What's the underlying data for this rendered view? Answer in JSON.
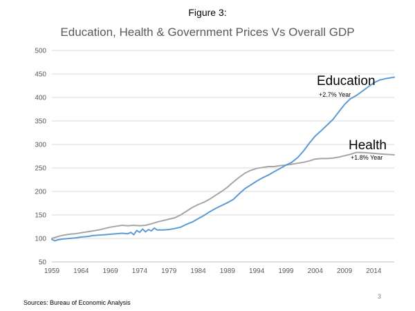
{
  "figure_label": "Figure 3:",
  "source": "Sources:  Bureau of Economic Analysis",
  "page_number": "3",
  "colors": {
    "education": "#5b9bd5",
    "health": "#a5a5a5",
    "grid": "#d9d9d9",
    "axis_text": "#595959"
  },
  "chart_data": {
    "type": "line",
    "title": "Education, Health & Government Prices Vs Overall GDP",
    "xlabel": "",
    "ylabel": "",
    "ylim": [
      50,
      500
    ],
    "xlim": [
      1959,
      2017.5
    ],
    "yticks": [
      50,
      100,
      150,
      200,
      250,
      300,
      350,
      400,
      450,
      500
    ],
    "xticks": [
      1959,
      1964,
      1969,
      1974,
      1979,
      1984,
      1989,
      1994,
      1999,
      2004,
      2009,
      2014
    ],
    "grid": true,
    "legend": "none",
    "series": [
      {
        "name": "Education",
        "label": "Education",
        "annotation": "+2.7% Year",
        "x": [
          1959,
          1959.5,
          1960,
          1961,
          1962,
          1963,
          1964,
          1965,
          1966,
          1967,
          1968,
          1969,
          1970,
          1971,
          1972,
          1972.5,
          1973,
          1973.5,
          1974,
          1974.5,
          1975,
          1975.5,
          1976,
          1976.5,
          1977,
          1978,
          1979,
          1980,
          1981,
          1982,
          1983,
          1984,
          1985,
          1986,
          1987,
          1988,
          1989,
          1990,
          1991,
          1992,
          1993,
          1994,
          1995,
          1996,
          1997,
          1998,
          1999,
          2000,
          2001,
          2002,
          2003,
          2004,
          2005,
          2006,
          2007,
          2008,
          2009,
          2010,
          2011,
          2012,
          2013,
          2014,
          2015,
          2016,
          2017.5
        ],
        "values": [
          98,
          95,
          97,
          99,
          100,
          101,
          103,
          104,
          106,
          107,
          108,
          109,
          110,
          111,
          110,
          113,
          108,
          117,
          113,
          120,
          114,
          119,
          116,
          122,
          118,
          118,
          119,
          121,
          124,
          130,
          135,
          142,
          149,
          157,
          164,
          170,
          176,
          183,
          195,
          206,
          214,
          222,
          229,
          235,
          242,
          249,
          256,
          262,
          272,
          286,
          303,
          318,
          329,
          341,
          353,
          369,
          385,
          397,
          404,
          413,
          422,
          431,
          437,
          440,
          443
        ]
      },
      {
        "name": "Health",
        "label": "Health",
        "annotation": "+1.8% Year",
        "x": [
          1959,
          1960,
          1961,
          1962,
          1963,
          1964,
          1965,
          1966,
          1967,
          1968,
          1969,
          1970,
          1971,
          1972,
          1973,
          1974,
          1975,
          1976,
          1977,
          1978,
          1979,
          1980,
          1981,
          1982,
          1983,
          1984,
          1985,
          1986,
          1987,
          1988,
          1989,
          1990,
          1991,
          1992,
          1993,
          1994,
          1995,
          1996,
          1997,
          1998,
          1999,
          2000,
          2001,
          2002,
          2003,
          2004,
          2005,
          2006,
          2007,
          2008,
          2009,
          2010,
          2011,
          2012,
          2013,
          2014,
          2015,
          2016,
          2017.5
        ],
        "values": [
          100,
          104,
          107,
          109,
          110,
          112,
          114,
          116,
          118,
          121,
          124,
          126,
          128,
          127,
          128,
          127,
          128,
          131,
          135,
          138,
          141,
          144,
          150,
          158,
          166,
          172,
          177,
          184,
          192,
          200,
          209,
          220,
          230,
          239,
          245,
          249,
          251,
          253,
          253,
          255,
          256,
          258,
          260,
          262,
          265,
          269,
          270,
          270,
          271,
          273,
          276,
          279,
          283,
          283,
          282,
          281,
          280,
          279,
          278
        ]
      }
    ]
  }
}
